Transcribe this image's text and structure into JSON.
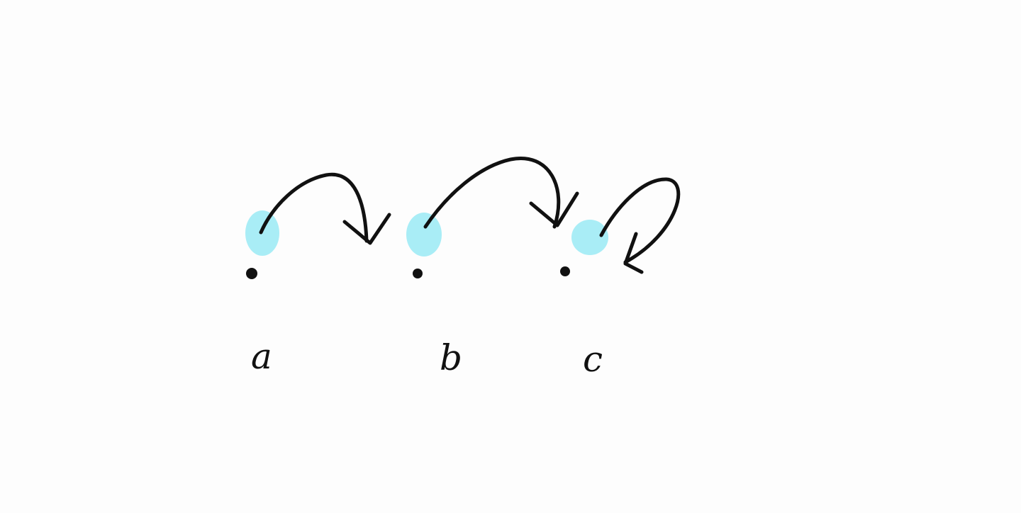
{
  "diagram": {
    "colors": {
      "background": "#fdfdfd",
      "ink": "#111111",
      "highlight": "#a4ecf5"
    },
    "nodes": [
      {
        "id": "a",
        "label": "a"
      },
      {
        "id": "b",
        "label": "b"
      },
      {
        "id": "c",
        "label": "c"
      }
    ],
    "edges": [
      {
        "from": "a",
        "to": "b"
      },
      {
        "from": "b",
        "to": "c"
      },
      {
        "from": "c",
        "to": "c"
      }
    ]
  }
}
